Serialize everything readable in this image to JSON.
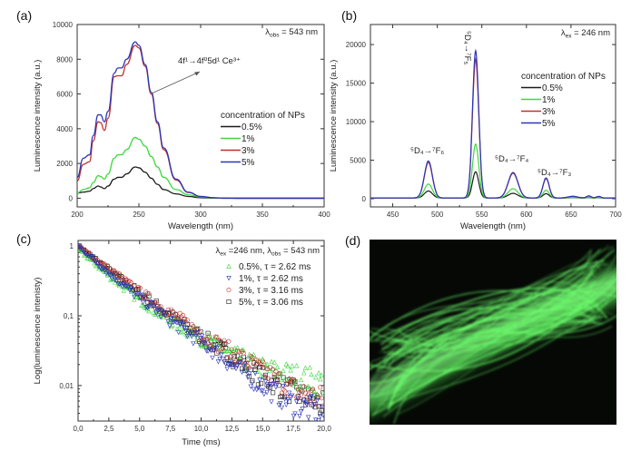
{
  "panel_labels": {
    "a": "(a)",
    "b": "(b)",
    "c": "(c)",
    "d": "(d)"
  },
  "colors": {
    "0.5%": "#1a1a1a",
    "1%": "#3fd83f",
    "3%": "#c0302c",
    "5%": "#2b35b8",
    "photo_glow": "#6dff6d"
  },
  "chart_data": [
    {
      "id": "a",
      "type": "line",
      "xlabel": "Wavelength (nm)",
      "ylabel": "Luminescence intensity (a.u.)",
      "xlim": [
        200,
        400
      ],
      "ylim": [
        -500,
        10000
      ],
      "xticks": [
        200,
        250,
        300,
        350,
        400
      ],
      "xtick_labels": [
        "200",
        "250",
        "300",
        "350",
        "400"
      ],
      "yticks": [
        0,
        2000,
        4000,
        6000,
        8000,
        10000
      ],
      "ytick_labels": [
        "0",
        "2000",
        "4000",
        "6000",
        "8000",
        "10000"
      ],
      "legend_title": "concentration of NPs",
      "legend_placement": "center-right",
      "annotation_obs_prefix": "λ",
      "annotation_obs_sub": "obs",
      "annotation_obs_value": " = 543 nm",
      "annotation_transition": "4f¹→4f⁰5d¹ Ce³⁺",
      "x": [
        200,
        205,
        210,
        213,
        217,
        219,
        222,
        225,
        230,
        233,
        236,
        240,
        247,
        250,
        255,
        260,
        265,
        270,
        280,
        290,
        300,
        310,
        320,
        330,
        400
      ],
      "series": [
        {
          "name": "0.5%",
          "values": [
            300,
            350,
            400,
            550,
            700,
            650,
            550,
            700,
            1100,
            1200,
            1200,
            1400,
            1800,
            1750,
            1500,
            1150,
            800,
            500,
            250,
            100,
            30,
            10,
            0,
            0,
            0
          ]
        },
        {
          "name": "1%",
          "values": [
            300,
            500,
            600,
            900,
            1300,
            1250,
            1100,
            1400,
            2300,
            2500,
            2500,
            2800,
            3500,
            3400,
            3000,
            2400,
            1800,
            1200,
            500,
            200,
            70,
            20,
            0,
            0,
            0
          ]
        },
        {
          "name": "3%",
          "values": [
            1000,
            1950,
            2100,
            3300,
            4400,
            4350,
            3900,
            4600,
            7000,
            7050,
            7050,
            7700,
            8800,
            8650,
            7600,
            6000,
            4300,
            2800,
            1050,
            330,
            100,
            30,
            5,
            0,
            0
          ]
        },
        {
          "name": "5%",
          "values": [
            1200,
            2300,
            2500,
            3600,
            4800,
            4800,
            4400,
            5000,
            7200,
            7500,
            7500,
            8000,
            9000,
            8800,
            7700,
            6100,
            4400,
            2900,
            1100,
            350,
            100,
            30,
            5,
            0,
            0
          ]
        }
      ]
    },
    {
      "id": "b",
      "type": "line",
      "xlabel": "Wavelength (nm)",
      "ylabel": "Luminescence intensity (a.u.)",
      "xlim": [
        425,
        700
      ],
      "ylim": [
        -1060,
        22600
      ],
      "xticks": [
        450,
        500,
        550,
        600,
        650,
        700
      ],
      "xtick_labels": [
        "450",
        "500",
        "550",
        "600",
        "650",
        "700"
      ],
      "yticks": [
        0,
        5000,
        10000,
        15000,
        20000
      ],
      "ytick_labels": [
        "0",
        "5000",
        "10000",
        "15000",
        "20000"
      ],
      "legend_title": "concentration of NPs",
      "legend_placement": "upper-right",
      "annotation_ex_prefix": "λ",
      "annotation_ex_sub": "ex",
      "annotation_ex_value": " = 246 nm",
      "peak_labels": [
        "⁵D₄→⁷F₆",
        "⁵D₄→⁷F₅",
        "⁵D₄→⁷F₄",
        "⁵D₄→⁷F₃"
      ],
      "baseline": 100,
      "peaks": [
        {
          "center": 490,
          "width": 4.5,
          "heights": {
            "0.5%": 900,
            "1%": 1800,
            "3%": 4600,
            "5%": 4800
          }
        },
        {
          "center": 543,
          "width": 3.5,
          "heights": {
            "0.5%": 3400,
            "1%": 7000,
            "3%": 18000,
            "5%": 19100
          }
        },
        {
          "center": 585,
          "width": 5.5,
          "heights": {
            "0.5%": 600,
            "1%": 1200,
            "3%": 3200,
            "5%": 3300
          }
        },
        {
          "center": 622,
          "width": 3.5,
          "heights": {
            "0.5%": 550,
            "1%": 1000,
            "3%": 2500,
            "5%": 2600
          }
        },
        {
          "center": 652,
          "width": 5,
          "heights": {
            "0.5%": 40,
            "1%": 80,
            "3%": 200,
            "5%": 220
          }
        },
        {
          "center": 670,
          "width": 2.5,
          "heights": {
            "0.5%": 50,
            "1%": 100,
            "3%": 250,
            "5%": 280
          }
        },
        {
          "center": 681,
          "width": 2.5,
          "heights": {
            "0.5%": 40,
            "1%": 80,
            "3%": 180,
            "5%": 200
          }
        }
      ],
      "series": [
        {
          "name": "0.5%"
        },
        {
          "name": "1%"
        },
        {
          "name": "3%"
        },
        {
          "name": "5%"
        }
      ]
    },
    {
      "id": "c",
      "type": "scatter",
      "xlabel": "Time (ms)",
      "ylabel": "Log(luminescence intenisty)",
      "xlim": [
        0,
        20
      ],
      "ylim": [
        0.0031,
        1.2
      ],
      "yscale": "log",
      "xticks": [
        0,
        2.5,
        5,
        7.5,
        10,
        12.5,
        15,
        17.5,
        20
      ],
      "xtick_labels": [
        "0,0",
        "2,5",
        "5,0",
        "7,5",
        "10,0",
        "12,5",
        "15,0",
        "17,5",
        "20,0"
      ],
      "yticks": [
        1,
        0.1,
        0.01
      ],
      "ytick_labels": [
        "1",
        "0,1",
        "0,01"
      ],
      "legend_placement": "upper-right",
      "header": {
        "l1": "λ",
        "s1": "ex",
        "v1": " =246 nm, ",
        "l2": "λ",
        "s2": "obs",
        "v2": " = 543 nm"
      },
      "x": [
        0,
        2.5,
        5,
        7.5,
        10,
        12.5,
        15,
        17.5,
        20
      ],
      "series": [
        {
          "name": "0.5%",
          "label": "0.5%, τ = 2.62 ms",
          "marker": "triangle-up",
          "color_key": "1%",
          "values": [
            0.9,
            0.38,
            0.17,
            0.085,
            0.048,
            0.028,
            0.018,
            0.014,
            0.011
          ]
        },
        {
          "name": "1%",
          "label": "1%, τ = 2.62 ms",
          "marker": "triangle-down",
          "color_key": "5%",
          "values": [
            1,
            0.4,
            0.18,
            0.085,
            0.042,
            0.02,
            0.01,
            0.0055,
            0.004
          ]
        },
        {
          "name": "3%",
          "label": "3%, τ = 3.16 ms",
          "marker": "circle",
          "color_key": "3%",
          "values": [
            1,
            0.47,
            0.22,
            0.11,
            0.055,
            0.03,
            0.016,
            0.009,
            0.006
          ]
        },
        {
          "name": "5%",
          "label": "5%, τ = 3.06 ms",
          "marker": "square",
          "color_key": "0.5%",
          "values": [
            1,
            0.45,
            0.21,
            0.1,
            0.05,
            0.026,
            0.013,
            0.008,
            0.005
          ]
        }
      ]
    }
  ]
}
